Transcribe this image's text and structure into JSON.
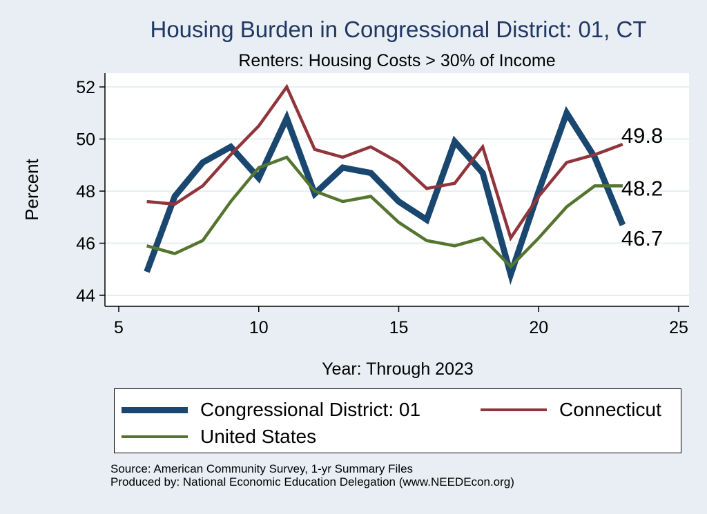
{
  "chart_data": {
    "type": "line",
    "title": "Housing Burden in Congressional District:  01, CT",
    "subtitle": "Renters: Housing Costs > 30% of Income",
    "xlabel": "Year: Through 2023",
    "ylabel": "Percent",
    "xlim": [
      5,
      25
    ],
    "ylim": [
      44,
      52
    ],
    "xticks": [
      5,
      10,
      15,
      20,
      25
    ],
    "yticks": [
      44,
      46,
      48,
      50,
      52
    ],
    "x": [
      6,
      7,
      8,
      9,
      10,
      11,
      12,
      13,
      14,
      15,
      16,
      17,
      18,
      19,
      20,
      21,
      22,
      23
    ],
    "series": [
      {
        "name": "Congressional District:  01",
        "color": "#1a476f",
        "width": 9,
        "values": [
          44.9,
          47.8,
          49.1,
          49.7,
          48.5,
          50.8,
          47.9,
          48.9,
          48.7,
          47.6,
          46.9,
          49.9,
          48.7,
          44.8,
          48.0,
          51.0,
          49.3,
          46.7
        ],
        "end_label": "46.7"
      },
      {
        "name": "Connecticut",
        "color": "#90353b",
        "width": 4.5,
        "values": [
          47.6,
          47.5,
          48.2,
          49.4,
          50.5,
          52.0,
          49.6,
          49.3,
          49.7,
          49.1,
          48.1,
          48.3,
          49.7,
          46.2,
          47.8,
          49.1,
          49.4,
          49.8
        ],
        "end_label": "49.8"
      },
      {
        "name": "United States",
        "color": "#55752f",
        "width": 4.5,
        "values": [
          45.9,
          45.6,
          46.1,
          47.6,
          48.9,
          49.3,
          48.0,
          47.6,
          47.8,
          46.8,
          46.1,
          45.9,
          46.2,
          45.1,
          46.2,
          47.4,
          48.2,
          48.2
        ],
        "end_label": "48.2"
      }
    ],
    "legend_position": "bottom",
    "grid": true
  },
  "source_line": "Source: American Community Survey, 1-yr Summary Files",
  "produced_line": "Produced by: National Economic Education Delegation (www.NEEDEcon.org)"
}
